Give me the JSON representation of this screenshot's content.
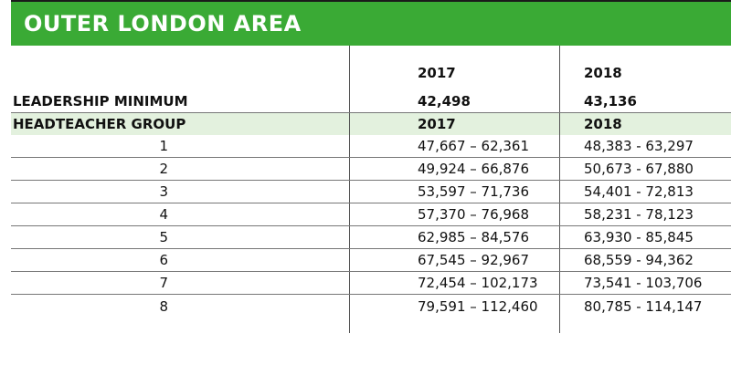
{
  "title": "OUTER LONDON AREA",
  "columns": {
    "year_a": "2017",
    "year_b": "2018"
  },
  "leadership": {
    "label": "LEADERSHIP MINIMUM",
    "v2017": "42,498",
    "v2018": "43,136"
  },
  "group_header": {
    "label": "HEADTEACHER GROUP",
    "y2017": "2017",
    "y2018": "2018"
  },
  "rows": [
    {
      "group": "1",
      "v2017": "47,667 – 62,361",
      "v2018": "48,383 - 63,297"
    },
    {
      "group": "2",
      "v2017": "49,924 – 66,876",
      "v2018": "50,673 - 67,880"
    },
    {
      "group": "3",
      "v2017": "53,597 – 71,736",
      "v2018": "54,401 - 72,813"
    },
    {
      "group": "4",
      "v2017": "57,370 – 76,968",
      "v2018": "58,231 - 78,123"
    },
    {
      "group": "5",
      "v2017": "62,985 – 84,576",
      "v2018": "63,930 - 85,845"
    },
    {
      "group": "6",
      "v2017": "67,545 – 92,967",
      "v2018": "68,559 - 94,362"
    },
    {
      "group": "7",
      "v2017": "72,454 – 102,173",
      "v2018": "73,541 - 103,706"
    },
    {
      "group": "8",
      "v2017": "79,591 – 112,460",
      "v2018": "80,785 - 114,147"
    }
  ],
  "colors": {
    "header_green": "#3aaa35",
    "group_row_tint": "#e3f1de"
  }
}
